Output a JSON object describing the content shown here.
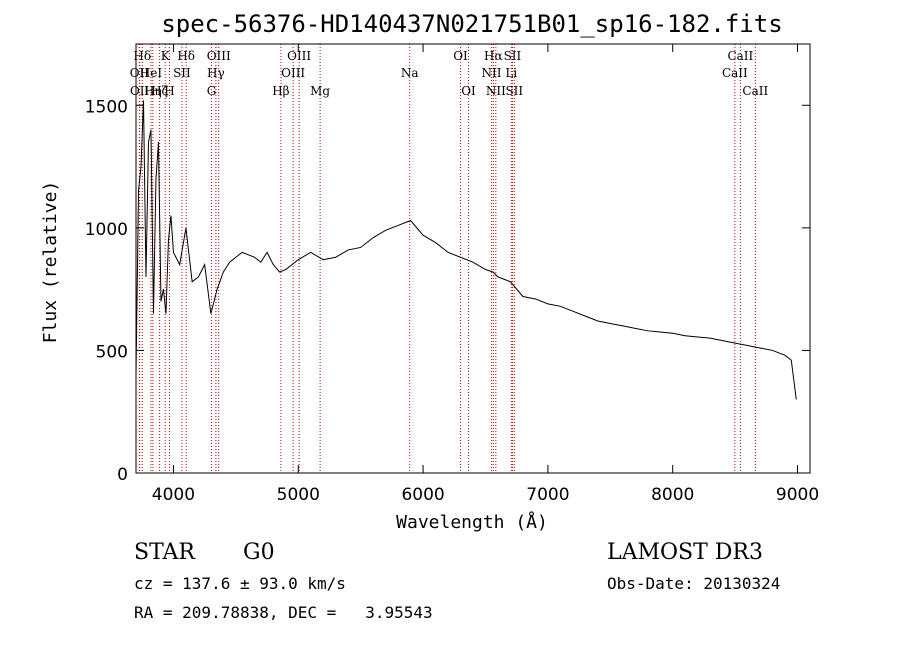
{
  "chart_data": {
    "type": "line",
    "title": "spec-56376-HD140437N021751B01_sp16-182.fits",
    "xlabel": "Wavelength (Å)",
    "ylabel": "Flux (relative)",
    "xlim": [
      3700,
      9100
    ],
    "ylim": [
      0,
      1750
    ],
    "xticks": [
      4000,
      5000,
      6000,
      7000,
      8000,
      9000
    ],
    "yticks": [
      0,
      500,
      1000,
      1500
    ],
    "grid": false,
    "series": [
      {
        "name": "flux",
        "x": [
          3700,
          3720,
          3740,
          3760,
          3780,
          3800,
          3820,
          3840,
          3860,
          3880,
          3900,
          3920,
          3940,
          3960,
          3980,
          4000,
          4050,
          4100,
          4150,
          4200,
          4250,
          4300,
          4350,
          4400,
          4450,
          4500,
          4550,
          4600,
          4650,
          4700,
          4750,
          4800,
          4850,
          4900,
          4950,
          5000,
          5100,
          5200,
          5300,
          5400,
          5500,
          5600,
          5700,
          5800,
          5900,
          6000,
          6100,
          6200,
          6300,
          6400,
          6500,
          6560,
          6600,
          6700,
          6800,
          6900,
          7000,
          7100,
          7200,
          7300,
          7400,
          7500,
          7600,
          7700,
          7800,
          7900,
          8000,
          8100,
          8200,
          8300,
          8400,
          8500,
          8600,
          8700,
          8800,
          8900,
          8950,
          8990
        ],
        "y": [
          400,
          1150,
          1250,
          1520,
          800,
          1350,
          1400,
          650,
          1200,
          1350,
          700,
          750,
          650,
          950,
          1050,
          900,
          850,
          1000,
          780,
          800,
          850,
          650,
          750,
          820,
          860,
          880,
          900,
          890,
          880,
          860,
          900,
          850,
          820,
          830,
          850,
          870,
          900,
          870,
          880,
          910,
          920,
          960,
          990,
          1010,
          1030,
          970,
          940,
          900,
          880,
          860,
          830,
          820,
          800,
          780,
          720,
          710,
          690,
          680,
          660,
          640,
          620,
          610,
          600,
          590,
          580,
          575,
          570,
          560,
          555,
          550,
          540,
          530,
          520,
          510,
          500,
          480,
          460,
          300
        ]
      }
    ],
    "lines": [
      {
        "label": "OII",
        "wl": 3727,
        "row": 2
      },
      {
        "label": "OII",
        "wl": 3729,
        "row": 3
      },
      {
        "label": "Hδ",
        "wl": 3750,
        "row": 1
      },
      {
        "label": "HeI",
        "wl": 3820,
        "row": 2
      },
      {
        "label": "Hη",
        "wl": 3835,
        "row": 3
      },
      {
        "label": "Hζ",
        "wl": 3889,
        "row": 3
      },
      {
        "label": "K",
        "wl": 3934,
        "row": 1
      },
      {
        "label": "SII",
        "wl": 4068,
        "row": 2
      },
      {
        "label": "H",
        "wl": 3968,
        "row": 3
      },
      {
        "label": "Hδ",
        "wl": 4102,
        "row": 1
      },
      {
        "label": "OIII",
        "wl": 4363,
        "row": 1
      },
      {
        "label": "Hγ",
        "wl": 4340,
        "row": 2
      },
      {
        "label": "G",
        "wl": 4305,
        "row": 3
      },
      {
        "label": "Hβ",
        "wl": 4861,
        "row": 3
      },
      {
        "label": "OIII",
        "wl": 5007,
        "row": 1
      },
      {
        "label": "OIII",
        "wl": 4959,
        "row": 2
      },
      {
        "label": "Mg",
        "wl": 5175,
        "row": 3
      },
      {
        "label": "Na",
        "wl": 5893,
        "row": 2
      },
      {
        "label": "OI",
        "wl": 6300,
        "row": 1
      },
      {
        "label": "OI",
        "wl": 6364,
        "row": 3
      },
      {
        "label": "Hα",
        "wl": 6563,
        "row": 1
      },
      {
        "label": "NII",
        "wl": 6548,
        "row": 2
      },
      {
        "label": "NII",
        "wl": 6583,
        "row": 3
      },
      {
        "label": "SII",
        "wl": 6716,
        "row": 1
      },
      {
        "label": "Li",
        "wl": 6707,
        "row": 2
      },
      {
        "label": "SII",
        "wl": 6731,
        "row": 3
      },
      {
        "label": "CaII",
        "wl": 8542,
        "row": 1
      },
      {
        "label": "CaII",
        "wl": 8498,
        "row": 2
      },
      {
        "label": "CaII",
        "wl": 8662,
        "row": 3
      }
    ]
  },
  "info": {
    "class_label": "STAR",
    "subclass": "G0",
    "survey": "LAMOST DR3",
    "cz_text": "cz = 137.6 ± 93.0 km/s",
    "obs_date_text": "Obs-Date: 20130324",
    "radec_text": "RA = 209.78838, DEC =   3.95543"
  }
}
